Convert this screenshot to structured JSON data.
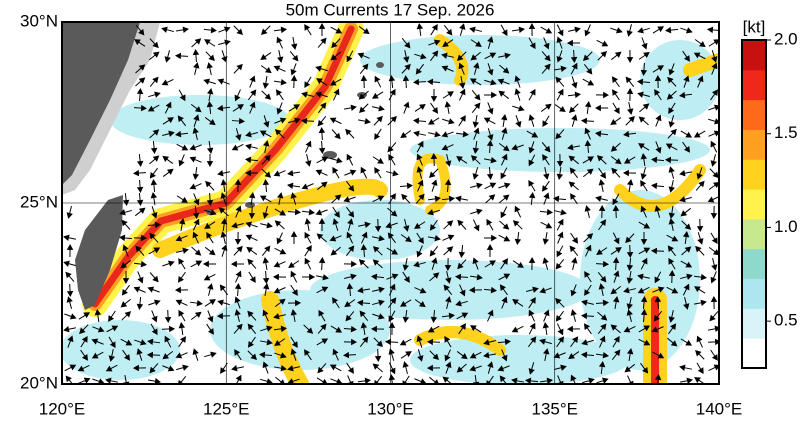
{
  "map": {
    "title": "50m Currents  17 Sep. 2026",
    "lon_range": [
      120,
      140
    ],
    "lat_range": [
      20,
      30
    ],
    "lon_ticks": [
      {
        "value": 120,
        "label": "120°E"
      },
      {
        "value": 125,
        "label": "125°E"
      },
      {
        "value": 130,
        "label": "130°E"
      },
      {
        "value": 135,
        "label": "135°E"
      },
      {
        "value": 140,
        "label": "140°E"
      }
    ],
    "lat_ticks": [
      {
        "value": 20,
        "label": "20°N"
      },
      {
        "value": 25,
        "label": "25°N"
      },
      {
        "value": 30,
        "label": "30°N"
      }
    ],
    "grid": true,
    "colorbar": {
      "unit": "[kt]",
      "range": [
        0.25,
        2.0
      ],
      "ticks": [
        0.5,
        {
          "value": 1,
          "label": "1.0"
        },
        1.5,
        {
          "value": 2,
          "label": "2.0"
        }
      ],
      "colors": [
        "#ffffff",
        "#d8f4f8",
        "#aee6ee",
        "#8fd8cc",
        "#c8e890",
        "#fff24a",
        "#ffd21e",
        "#ffa020",
        "#ff6a1a",
        "#f0281a",
        "#c81010"
      ]
    }
  }
}
